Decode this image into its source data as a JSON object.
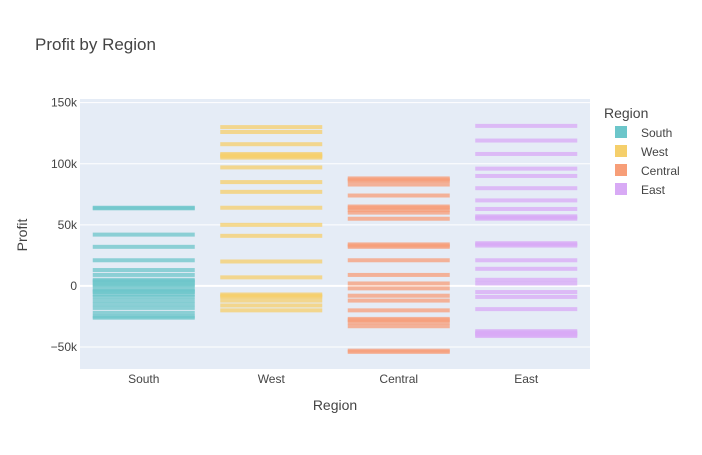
{
  "chart_data": {
    "type": "strip",
    "title": "Profit by Region",
    "xlabel": "Region",
    "ylabel": "Profit",
    "ylim": [
      -68000,
      153000
    ],
    "yticks": [
      -50000,
      0,
      50000,
      100000,
      150000
    ],
    "ytick_labels": [
      "−50k",
      "0",
      "50k",
      "100k",
      "150k"
    ],
    "categories": [
      "South",
      "West",
      "Central",
      "East"
    ],
    "legend": {
      "title": "Region",
      "position": "right"
    },
    "grid": true,
    "series": [
      {
        "name": "South",
        "color": "#6cc6ca",
        "values": [
          64000,
          63500,
          42000,
          32000,
          21000,
          13000,
          9000,
          5000,
          4000,
          3000,
          1000,
          0,
          -3000,
          -4000,
          -5000,
          -7000,
          -9000,
          -12000,
          -15000,
          -18000,
          -22000,
          -25000,
          -26000
        ]
      },
      {
        "name": "West",
        "color": "#f5cf6b",
        "values": [
          130000,
          126000,
          116000,
          108000,
          107000,
          106000,
          105000,
          97000,
          85000,
          77000,
          64000,
          50000,
          41000,
          20000,
          7000,
          -7000,
          -8000,
          -9000,
          -12000,
          -16000,
          -20000
        ]
      },
      {
        "name": "Central",
        "color": "#f79e78",
        "values": [
          88000,
          87000,
          86000,
          83000,
          74000,
          65000,
          64000,
          62000,
          60000,
          55000,
          34000,
          33000,
          32000,
          21000,
          9000,
          2000,
          -2000,
          -8000,
          -12000,
          -20000,
          -27000,
          -28000,
          -30000,
          -33000,
          -53000,
          -54000
        ]
      },
      {
        "name": "East",
        "color": "#d8aaf5",
        "values": [
          131000,
          119000,
          108000,
          96000,
          90000,
          80000,
          70000,
          63000,
          57000,
          56000,
          55000,
          35000,
          34000,
          33000,
          21000,
          14000,
          5000,
          2000,
          -5000,
          -9000,
          -19000,
          -37000,
          -38000,
          -39000,
          -40000,
          -41000
        ]
      }
    ]
  }
}
